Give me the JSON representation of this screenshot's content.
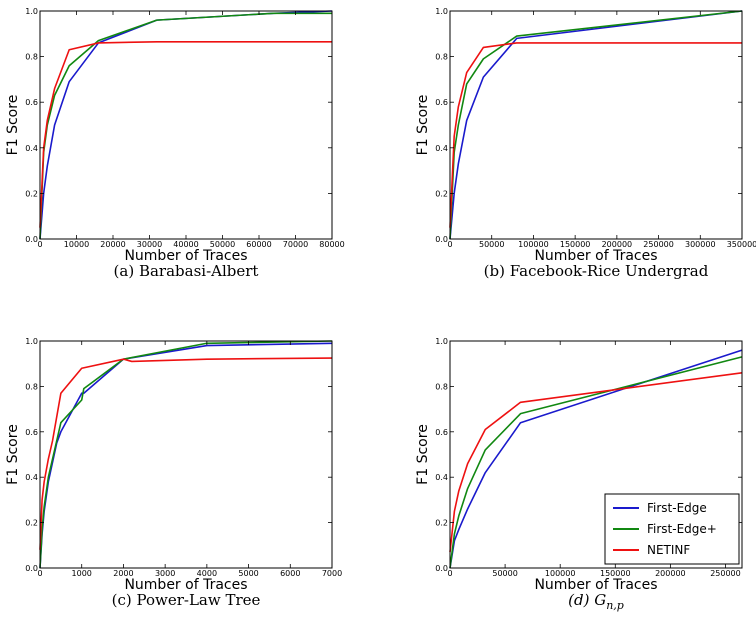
{
  "colors": {
    "First-Edge": "#1a1acc",
    "First-Edge+": "#118811",
    "NETINF": "#ee1111"
  },
  "legend": {
    "panel": 3,
    "placement": "bottom-right",
    "entries": [
      "First-Edge",
      "First-Edge+",
      "NETINF"
    ]
  },
  "chart_data": [
    {
      "type": "line",
      "caption": "(a)  Barabasi-Albert",
      "xlabel": "Number of Traces",
      "ylabel": "F1 Score",
      "xlim": [
        0,
        80000
      ],
      "ylim": [
        0,
        1
      ],
      "xticks": [
        0,
        10000,
        20000,
        30000,
        40000,
        50000,
        60000,
        70000,
        80000
      ],
      "xtick_labels": [
        "0",
        "10000",
        "20000",
        "30000",
        "40000",
        "50000",
        "60000",
        "70000",
        "80000"
      ],
      "yticks": [
        0,
        0.2,
        0.4,
        0.6,
        0.8,
        1.0
      ],
      "ytick_labels": [
        "0.0",
        "0.2",
        "0.4",
        "0.6",
        "0.8",
        "1.0"
      ],
      "series": [
        {
          "name": "First-Edge",
          "x": [
            0,
            1000,
            2000,
            4000,
            8000,
            16000,
            32000,
            64000,
            80000
          ],
          "y": [
            0.0,
            0.2,
            0.32,
            0.5,
            0.69,
            0.86,
            0.96,
            0.99,
            1.0
          ]
        },
        {
          "name": "First-Edge+",
          "x": [
            0,
            1000,
            2000,
            4000,
            8000,
            16000,
            32000,
            64000,
            80000
          ],
          "y": [
            0.0,
            0.38,
            0.5,
            0.63,
            0.76,
            0.87,
            0.96,
            0.99,
            0.99
          ]
        },
        {
          "name": "NETINF",
          "x": [
            0,
            1000,
            2000,
            4000,
            8000,
            16000,
            32000,
            64000,
            80000
          ],
          "y": [
            0.05,
            0.4,
            0.52,
            0.66,
            0.83,
            0.86,
            0.865,
            0.865,
            0.865
          ]
        }
      ]
    },
    {
      "type": "line",
      "caption": "(b)  Facebook-Rice Undergrad",
      "xlabel": "Number of Traces",
      "ylabel": "F1 Score",
      "xlim": [
        0,
        350000
      ],
      "ylim": [
        0,
        1
      ],
      "xticks": [
        0,
        50000,
        100000,
        150000,
        200000,
        250000,
        300000,
        350000
      ],
      "xtick_labels": [
        "0",
        "50000",
        "100000",
        "150000",
        "200000",
        "250000",
        "300000",
        "350000"
      ],
      "yticks": [
        0,
        0.2,
        0.4,
        0.6,
        0.8,
        1.0
      ],
      "ytick_labels": [
        "0.0",
        "0.2",
        "0.4",
        "0.6",
        "0.8",
        "1.0"
      ],
      "series": [
        {
          "name": "First-Edge",
          "x": [
            0,
            5000,
            10000,
            20000,
            40000,
            80000,
            350000
          ],
          "y": [
            0.0,
            0.2,
            0.33,
            0.52,
            0.71,
            0.88,
            1.0
          ]
        },
        {
          "name": "First-Edge+",
          "x": [
            0,
            5000,
            10000,
            20000,
            40000,
            80000,
            350000
          ],
          "y": [
            0.0,
            0.38,
            0.5,
            0.68,
            0.79,
            0.89,
            1.0
          ]
        },
        {
          "name": "NETINF",
          "x": [
            0,
            5000,
            10000,
            20000,
            40000,
            80000,
            350000
          ],
          "y": [
            0.05,
            0.45,
            0.58,
            0.73,
            0.84,
            0.86,
            0.86
          ]
        }
      ]
    },
    {
      "type": "line",
      "caption": "(c)  Power-Law Tree",
      "xlabel": "Number of Traces",
      "ylabel": "F1 Score",
      "xlim": [
        0,
        7000
      ],
      "ylim": [
        0,
        1
      ],
      "xticks": [
        0,
        1000,
        2000,
        3000,
        4000,
        5000,
        6000,
        7000
      ],
      "xtick_labels": [
        "0",
        "1000",
        "2000",
        "3000",
        "4000",
        "5000",
        "6000",
        "7000"
      ],
      "yticks": [
        0,
        0.2,
        0.4,
        0.6,
        0.8,
        1.0
      ],
      "ytick_labels": [
        "0.0",
        "0.2",
        "0.4",
        "0.6",
        "0.8",
        "1.0"
      ],
      "series": [
        {
          "name": "First-Edge",
          "x": [
            0,
            50,
            100,
            200,
            400,
            500,
            1000,
            1050,
            2000,
            4000,
            7000
          ],
          "y": [
            0.0,
            0.15,
            0.25,
            0.38,
            0.55,
            0.6,
            0.77,
            0.77,
            0.92,
            0.98,
            0.99
          ]
        },
        {
          "name": "First-Edge+",
          "x": [
            0,
            50,
            100,
            200,
            400,
            500,
            1000,
            1050,
            2000,
            4000,
            7000
          ],
          "y": [
            0.0,
            0.17,
            0.27,
            0.4,
            0.56,
            0.64,
            0.74,
            0.79,
            0.92,
            0.99,
            1.0
          ]
        },
        {
          "name": "NETINF",
          "x": [
            0,
            50,
            100,
            200,
            300,
            500,
            1000,
            2000,
            2200,
            4000,
            7000
          ],
          "y": [
            0.08,
            0.3,
            0.38,
            0.48,
            0.56,
            0.77,
            0.88,
            0.92,
            0.91,
            0.92,
            0.925
          ]
        }
      ]
    },
    {
      "type": "line",
      "caption": "(d)  G_{n,p}",
      "caption_main": "(d)  G",
      "caption_sub": "n,p",
      "xlabel": "Number of Traces",
      "ylabel": "F1 Score",
      "xlim": [
        0,
        265000
      ],
      "ylim": [
        0,
        1
      ],
      "xticks": [
        0,
        50000,
        100000,
        150000,
        200000,
        250000
      ],
      "xtick_labels": [
        "0",
        "50000",
        "100000",
        "150000",
        "200000",
        "250000"
      ],
      "yticks": [
        0,
        0.2,
        0.4,
        0.6,
        0.8,
        1.0
      ],
      "ytick_labels": [
        "0.0",
        "0.2",
        "0.4",
        "0.6",
        "0.8",
        "1.0"
      ],
      "series": [
        {
          "name": "First-Edge",
          "x": [
            0,
            4000,
            8000,
            16000,
            32000,
            64000,
            265000
          ],
          "y": [
            0.0,
            0.12,
            0.17,
            0.26,
            0.42,
            0.64,
            0.96
          ]
        },
        {
          "name": "First-Edge+",
          "x": [
            0,
            4000,
            8000,
            16000,
            32000,
            64000,
            265000
          ],
          "y": [
            0.0,
            0.15,
            0.23,
            0.35,
            0.52,
            0.68,
            0.93
          ]
        },
        {
          "name": "NETINF",
          "x": [
            0,
            4000,
            8000,
            16000,
            32000,
            64000,
            265000
          ],
          "y": [
            0.07,
            0.25,
            0.34,
            0.46,
            0.61,
            0.73,
            0.86
          ]
        }
      ]
    }
  ]
}
